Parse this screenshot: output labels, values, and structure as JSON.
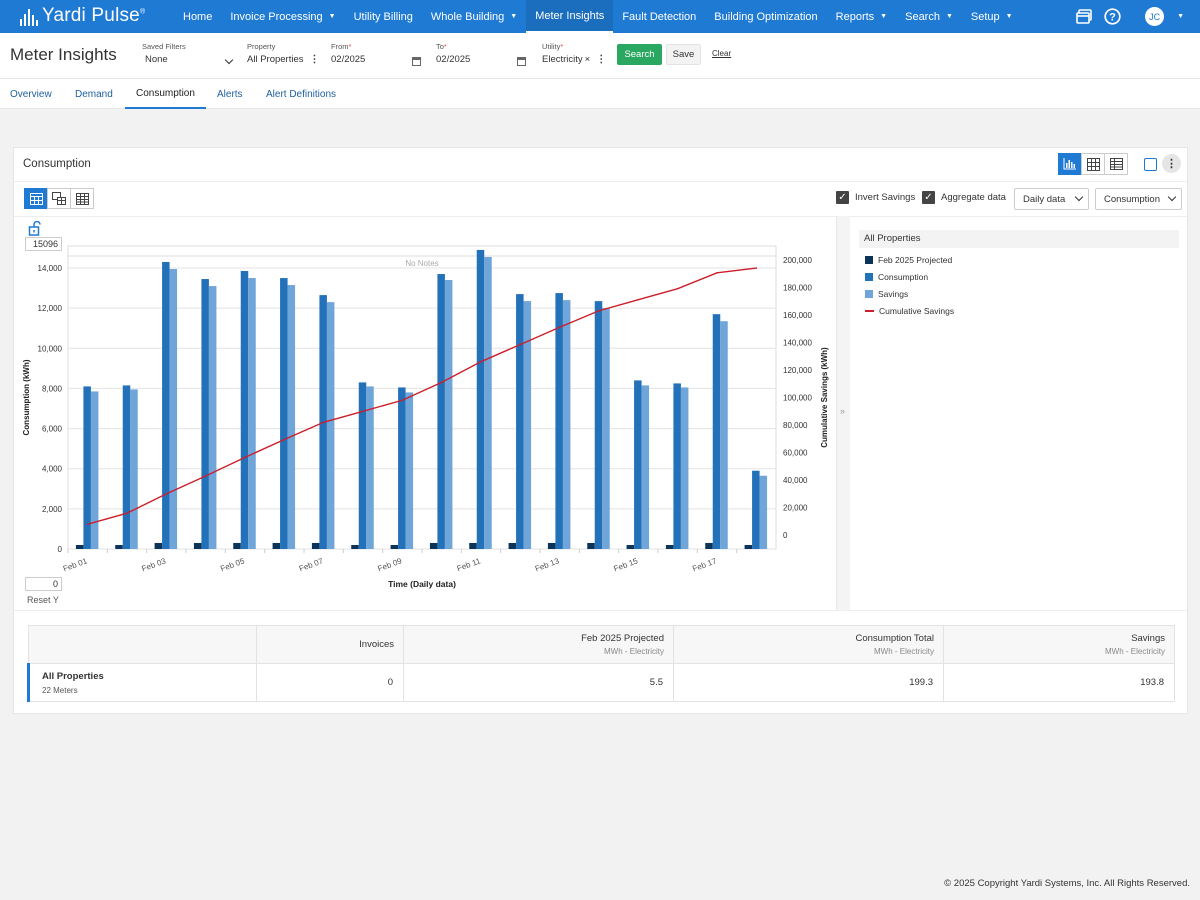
{
  "brand": {
    "name": "Yardi Pulse",
    "mark": "®"
  },
  "nav": {
    "items": [
      {
        "label": "Home",
        "caret": false
      },
      {
        "label": "Invoice Processing",
        "caret": true
      },
      {
        "label": "Utility Billing",
        "caret": false
      },
      {
        "label": "Whole Building",
        "caret": true
      },
      {
        "label": "Meter Insights",
        "caret": false,
        "active": true
      },
      {
        "label": "Fault Detection",
        "caret": false
      },
      {
        "label": "Building Optimization",
        "caret": false
      },
      {
        "label": "Reports",
        "caret": true
      },
      {
        "label": "Search",
        "caret": true
      },
      {
        "label": "Setup",
        "caret": true
      }
    ],
    "icons": [
      "windows-icon",
      "help-icon"
    ],
    "user_initials": "JC"
  },
  "filters": {
    "title": "Meter Insights",
    "saved_filters": {
      "label": "Saved Filters",
      "value": "None"
    },
    "property": {
      "label": "Property",
      "value": "All Properties"
    },
    "from": {
      "label": "From",
      "value": "02/2025"
    },
    "to": {
      "label": "To",
      "value": "02/2025"
    },
    "utility": {
      "label": "Utility",
      "value": "Electricity"
    },
    "search_label": "Search",
    "save_label": "Save",
    "clear_label": "Clear"
  },
  "tabs": [
    "Overview",
    "Demand",
    "Consumption",
    "Alerts",
    "Alert Definitions"
  ],
  "panel": {
    "title": "Consumption",
    "invert_savings": "Invert Savings",
    "aggregate_data": "Aggregate data",
    "period_select": "Daily data",
    "metric_select": "Consumption",
    "y_max_box": "15096",
    "y_min_box": "0",
    "reset_y": "Reset Y"
  },
  "colors": {
    "projected": "#0c3459",
    "consumption": "#2271b9",
    "savings": "#6fa5d8",
    "cumulative": "#cc1f2b",
    "accent": "#1f7ad4",
    "success": "#2aa761"
  },
  "chart_data": {
    "type": "bar",
    "no_notes": "No Notes",
    "xlabel": "Time (Daily data)",
    "ylabel": "Consumption (kWh)",
    "y2label": "Cumulative Savings (kWh)",
    "ylim": [
      0,
      15096
    ],
    "y2lim": [
      -10000,
      210000
    ],
    "yticks": [
      0,
      2000,
      4000,
      6000,
      8000,
      10000,
      12000,
      14000
    ],
    "ytick_labels": [
      "0",
      "2,000",
      "4,000",
      "6,000",
      "8,000",
      "10,000",
      "12,000",
      "14,000"
    ],
    "y2ticks": [
      0,
      20000,
      40000,
      60000,
      80000,
      100000,
      120000,
      140000,
      160000,
      180000,
      200000
    ],
    "y2tick_labels": [
      "0",
      "20,000",
      "40,000",
      "60,000",
      "80,000",
      "100,000",
      "120,000",
      "140,000",
      "160,000",
      "180,000",
      "200,000"
    ],
    "categories": [
      "Feb 01",
      "Feb 02",
      "Feb 03",
      "Feb 04",
      "Feb 05",
      "Feb 06",
      "Feb 07",
      "Feb 08",
      "Feb 09",
      "Feb 10",
      "Feb 11",
      "Feb 12",
      "Feb 13",
      "Feb 14",
      "Feb 15",
      "Feb 16",
      "Feb 17",
      "Feb 18"
    ],
    "tick_labels": [
      "Feb 01",
      "",
      "Feb 03",
      "",
      "Feb 05",
      "",
      "Feb 07",
      "",
      "Feb 09",
      "",
      "Feb 11",
      "",
      "Feb 13",
      "",
      "Feb 15",
      "",
      "Feb 17",
      ""
    ],
    "series": [
      {
        "name": "Feb 2025 Projected",
        "values": [
          200,
          200,
          300,
          300,
          300,
          300,
          300,
          200,
          200,
          300,
          300,
          300,
          300,
          300,
          200,
          200,
          300,
          200
        ]
      },
      {
        "name": "Consumption",
        "values": [
          8100,
          8150,
          14300,
          13450,
          13850,
          13500,
          12650,
          8300,
          8050,
          13700,
          14900,
          12700,
          12750,
          12350,
          8400,
          8250,
          11700,
          3900
        ]
      },
      {
        "name": "Savings",
        "values": [
          7850,
          7950,
          13950,
          13100,
          13500,
          13150,
          12300,
          8100,
          7800,
          13400,
          14550,
          12350,
          12400,
          12000,
          8150,
          8050,
          11350,
          3650
        ]
      },
      {
        "name": "Cumulative Savings",
        "axis": "right",
        "values": [
          8000,
          16000,
          30000,
          43000,
          56500,
          69500,
          82000,
          90000,
          98000,
          111000,
          126000,
          138500,
          151000,
          163000,
          171000,
          179000,
          190500,
          194000
        ]
      }
    ]
  },
  "legend": {
    "heading": "All Properties",
    "items": [
      "Feb 2025 Projected",
      "Consumption",
      "Savings",
      "Cumulative Savings"
    ]
  },
  "summary": {
    "headers": {
      "invoices": "Invoices",
      "projected": "Feb 2025 Projected",
      "consumption": "Consumption Total",
      "savings": "Savings",
      "unit": "MWh - Electricity"
    },
    "row": {
      "name": "All Properties",
      "meters": "22 Meters",
      "invoices": "0",
      "projected": "5.5",
      "consumption": "199.3",
      "savings": "193.8"
    }
  },
  "footer": "© 2025 Copyright Yardi Systems, Inc. All Rights Reserved."
}
